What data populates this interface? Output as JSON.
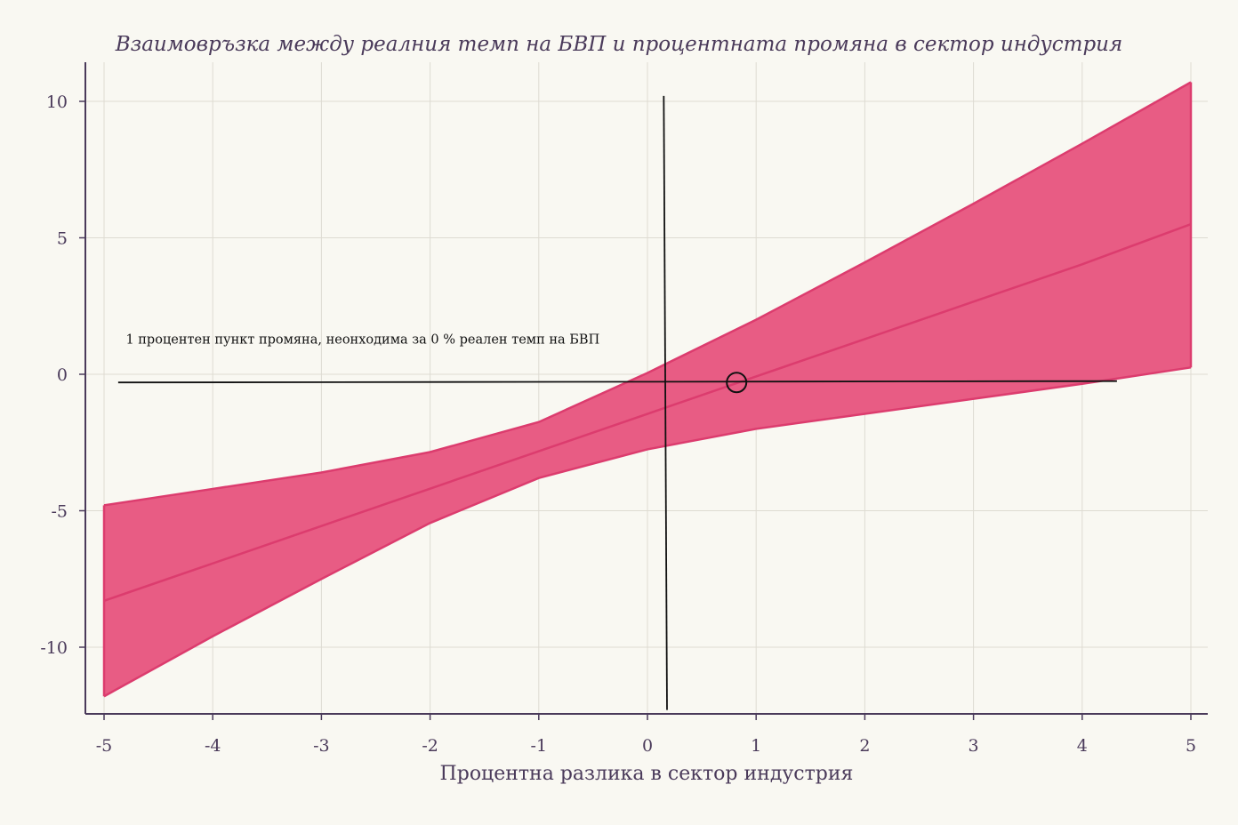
{
  "chart_data": {
    "type": "area",
    "title": "Взаимовръзка между реалния темп на БВП и процентната промяна в сектор индустрия",
    "xlabel": "Процентна разлика в сектор индустрия",
    "ylabel": "",
    "xlim": [
      -5,
      5
    ],
    "ylim": [
      -12.3,
      11.4
    ],
    "x_ticks": [
      -5,
      -4,
      -3,
      -2,
      -1,
      0,
      1,
      2,
      3,
      4,
      5
    ],
    "y_ticks": [
      -10,
      -5,
      0,
      5,
      10
    ],
    "grid": true,
    "legend": "none",
    "series": [
      {
        "role": "fit",
        "x": [
          -5,
          -4,
          -3,
          -2,
          -1,
          0,
          1,
          2,
          3,
          4,
          5
        ],
        "y": [
          -8.3,
          -6.93,
          -5.56,
          -4.19,
          -2.82,
          -1.45,
          -0.08,
          1.29,
          2.66,
          4.03,
          5.5
        ]
      },
      {
        "role": "upper",
        "x": [
          -5,
          -4,
          -3,
          -2,
          -1,
          0,
          1,
          2,
          3,
          4,
          5
        ],
        "y": [
          -4.8,
          -4.2,
          -3.6,
          -2.85,
          -1.75,
          0.05,
          2.0,
          4.1,
          6.25,
          8.45,
          10.7
        ]
      },
      {
        "role": "lower",
        "x": [
          -5,
          -4,
          -3,
          -2,
          -1,
          0,
          1,
          2,
          3,
          4,
          5
        ],
        "y": [
          -11.8,
          -9.6,
          -7.5,
          -5.45,
          -3.8,
          -2.75,
          -2.0,
          -1.45,
          -0.9,
          -0.35,
          0.25
        ]
      }
    ],
    "reference_lines": [
      {
        "orientation": "horizontal",
        "x": [
          -4.87,
          4.32
        ],
        "y": [
          -0.3,
          -0.25
        ]
      },
      {
        "orientation": "vertical",
        "x": [
          0.15,
          0.18
        ],
        "y": [
          10.2,
          -12.3
        ]
      }
    ],
    "highlight_point": {
      "x": 0.82,
      "y": -0.3
    },
    "annotation": {
      "text": "1 процентен пункт промяна, неонходима за 0 % реален темп на БВП",
      "x": -4.8,
      "y": 1.12
    },
    "colors": {
      "band_fill": "#e85c84",
      "band_stroke": "#dc3c6e",
      "fit_line": "#dc3c6e",
      "reference_line": "#111111",
      "grid": "#dedbd2",
      "axis": "#4a3a5a",
      "background": "#f9f8f2"
    }
  }
}
